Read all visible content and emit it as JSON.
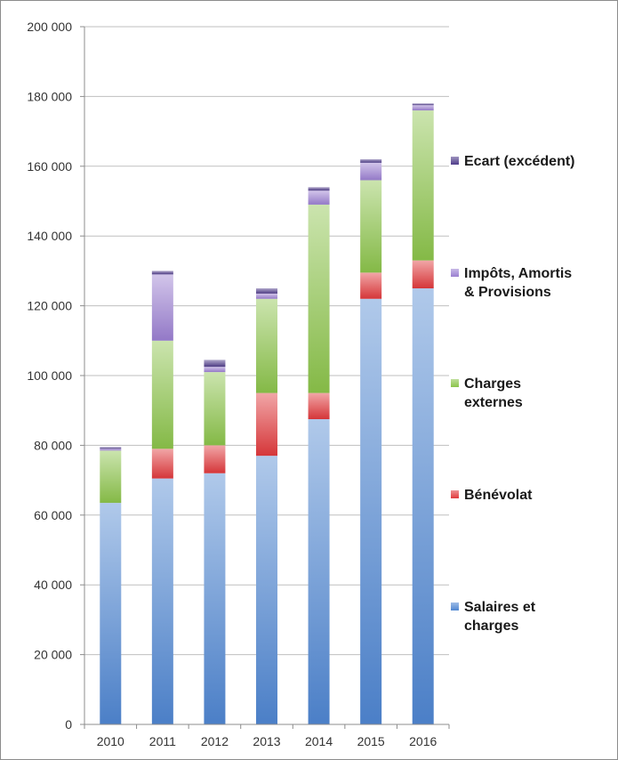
{
  "chart_data": {
    "type": "bar",
    "stacked": true,
    "categories": [
      "2010",
      "2011",
      "2012",
      "2013",
      "2014",
      "2015",
      "2016"
    ],
    "series": [
      {
        "name": "Salaires et\ncharges",
        "values": [
          63500,
          70500,
          72000,
          77000,
          87500,
          122000,
          125000
        ],
        "color": "#4f86d1"
      },
      {
        "name": "Bénévolat",
        "values": [
          0,
          8500,
          8000,
          18000,
          7500,
          7500,
          8000
        ],
        "color": "#e0393c"
      },
      {
        "name": "Charges\nexternes",
        "values": [
          15000,
          31000,
          21000,
          27000,
          54000,
          26500,
          43000
        ],
        "color": "#8bc34a"
      },
      {
        "name": "Impôts, Amortis\n& Provisions",
        "values": [
          500,
          19000,
          1500,
          1500,
          4000,
          5000,
          1500
        ],
        "color": "#9b7fd1"
      },
      {
        "name": "Ecart (excédent)",
        "values": [
          500,
          1000,
          2000,
          1500,
          1000,
          1000,
          500
        ],
        "color": "#4f3c8a"
      }
    ],
    "y_tick_labels": [
      "0",
      "20 000",
      "40 000",
      "60 000",
      "80 000",
      "100 000",
      "120 000",
      "140 000",
      "160 000",
      "180 000",
      "200 000"
    ],
    "ylim": [
      0,
      200000
    ],
    "grid": true,
    "legend_position": "right"
  }
}
